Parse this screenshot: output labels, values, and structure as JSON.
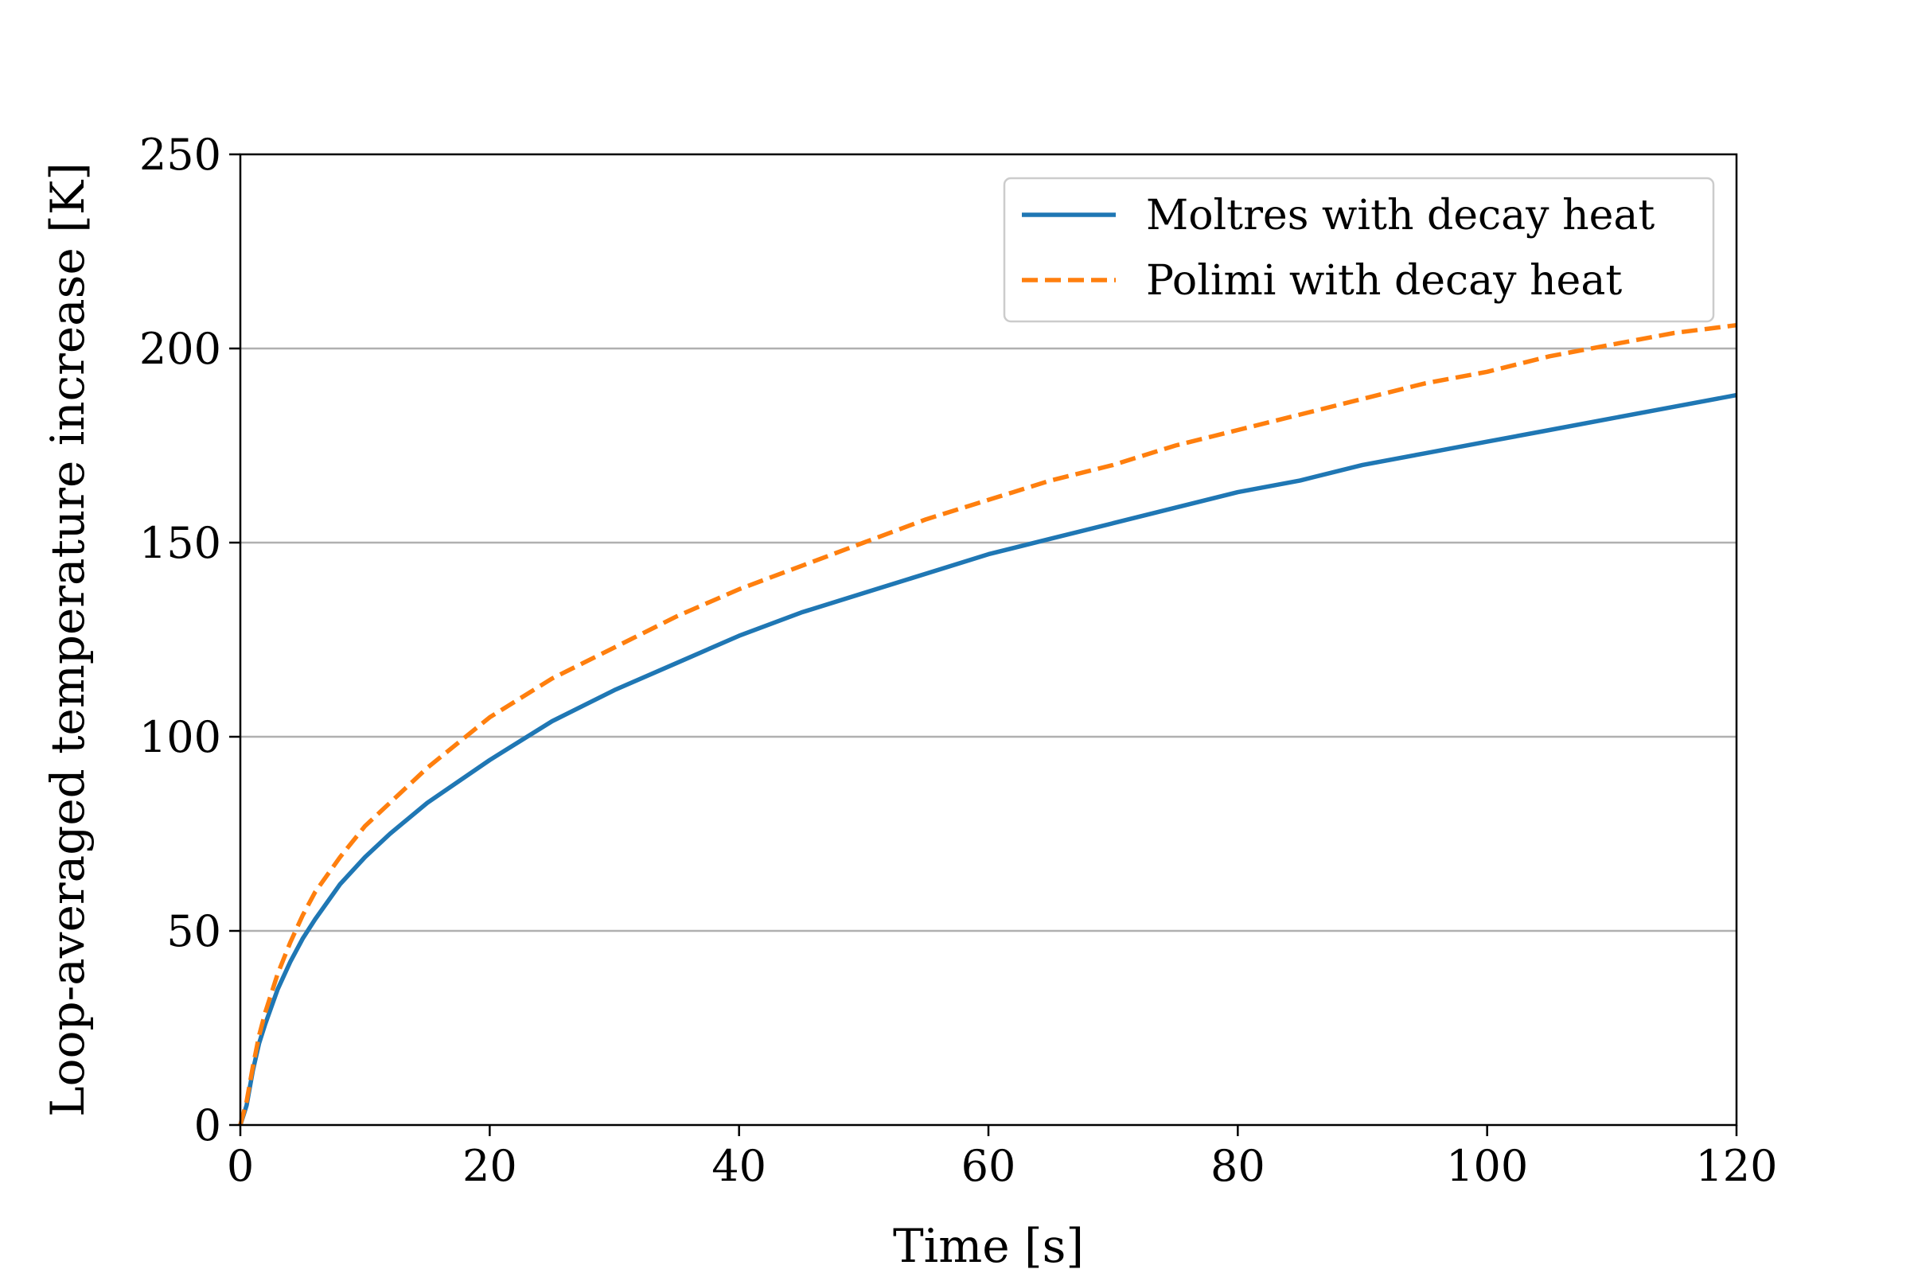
{
  "chart_data": {
    "type": "line",
    "title": "",
    "xlabel": "Time [s]",
    "ylabel": "Loop-averaged temperature increase [K]",
    "xlim": [
      0,
      120
    ],
    "ylim": [
      0,
      250
    ],
    "xticks": [
      0,
      20,
      40,
      60,
      80,
      100,
      120
    ],
    "yticks": [
      0,
      50,
      100,
      150,
      200,
      250
    ],
    "grid": "horizontal",
    "legend_position": "top-right",
    "series": [
      {
        "name": "Moltres with decay heat",
        "color": "#1f77b4",
        "style": "solid",
        "x": [
          0,
          0.5,
          1,
          1.5,
          2,
          3,
          4,
          5,
          6,
          8,
          10,
          12,
          15,
          20,
          25,
          30,
          35,
          40,
          45,
          50,
          55,
          60,
          65,
          70,
          75,
          80,
          85,
          90,
          95,
          100,
          105,
          110,
          115,
          120
        ],
        "y": [
          0,
          5,
          14,
          21,
          26,
          35,
          42,
          48,
          53,
          62,
          69,
          75,
          83,
          94,
          104,
          112,
          119,
          126,
          132,
          137,
          142,
          147,
          151,
          155,
          159,
          163,
          166,
          170,
          173,
          176,
          179,
          182,
          185,
          188
        ]
      },
      {
        "name": "Polimi with decay heat",
        "color": "#ff7f0e",
        "style": "dashed",
        "x": [
          0,
          0.5,
          1,
          1.5,
          2,
          3,
          4,
          5,
          6,
          8,
          10,
          12,
          15,
          20,
          25,
          30,
          35,
          40,
          45,
          50,
          55,
          60,
          65,
          70,
          75,
          80,
          85,
          90,
          95,
          100,
          105,
          110,
          115,
          120
        ],
        "y": [
          0,
          6,
          15,
          23,
          29,
          39,
          47,
          54,
          60,
          69,
          77,
          83,
          92,
          105,
          115,
          123,
          131,
          138,
          144,
          150,
          156,
          161,
          166,
          170,
          175,
          179,
          183,
          187,
          191,
          194,
          198,
          201,
          204,
          206
        ]
      }
    ]
  }
}
